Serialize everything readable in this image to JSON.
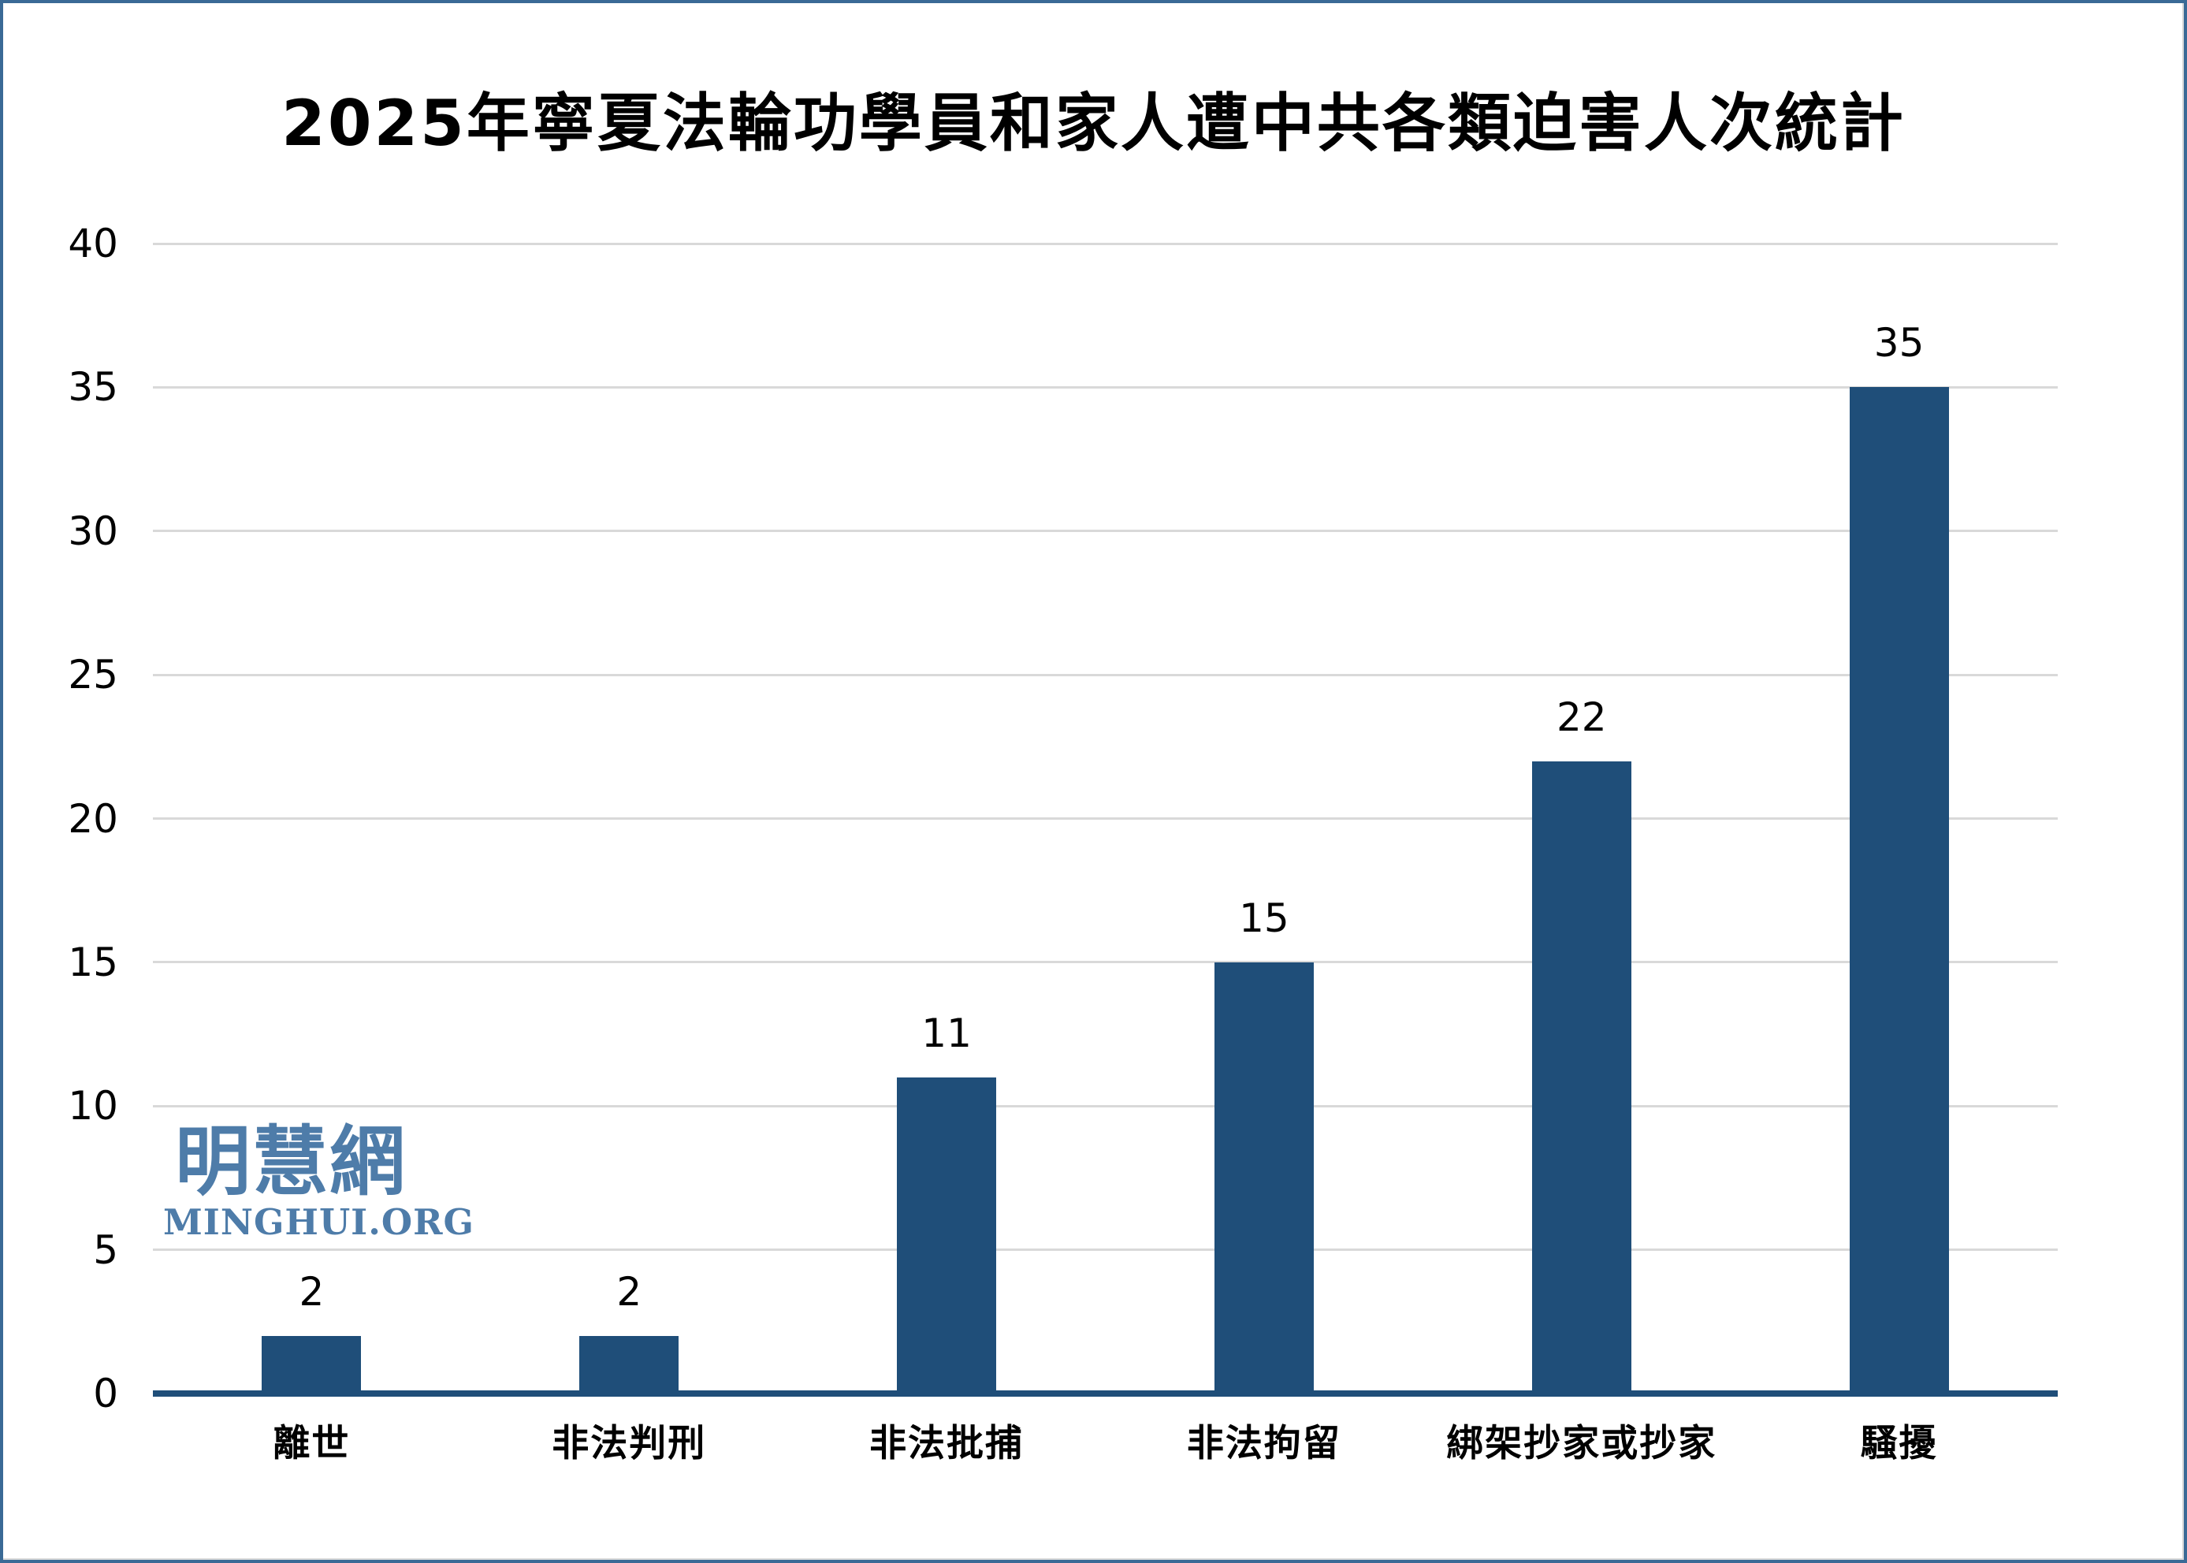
{
  "chart_data": {
    "type": "bar",
    "title": "2025年寧夏法輪功學員和家人遭中共各類迫害人次統計",
    "categories": [
      "離世",
      "非法判刑",
      "非法批捕",
      "非法拘留",
      "綁架抄家或抄家",
      "騷擾"
    ],
    "values": [
      2,
      2,
      11,
      15,
      22,
      35
    ],
    "xlabel": "",
    "ylabel": "",
    "ylim": [
      0,
      40
    ],
    "yticks": [
      0,
      5,
      10,
      15,
      20,
      25,
      30,
      35,
      40
    ],
    "grid": true,
    "legend": false,
    "bar_color": "#1F4E79",
    "axis_line_color": "#1F4E79",
    "gridline_color": "#D9D9D9",
    "label_color": "#000000",
    "frame_border_color": "#3A6A96"
  },
  "watermark": {
    "cjk": "明慧網",
    "latin": "MINGHUI.ORG",
    "color": "#4E7CA9"
  }
}
